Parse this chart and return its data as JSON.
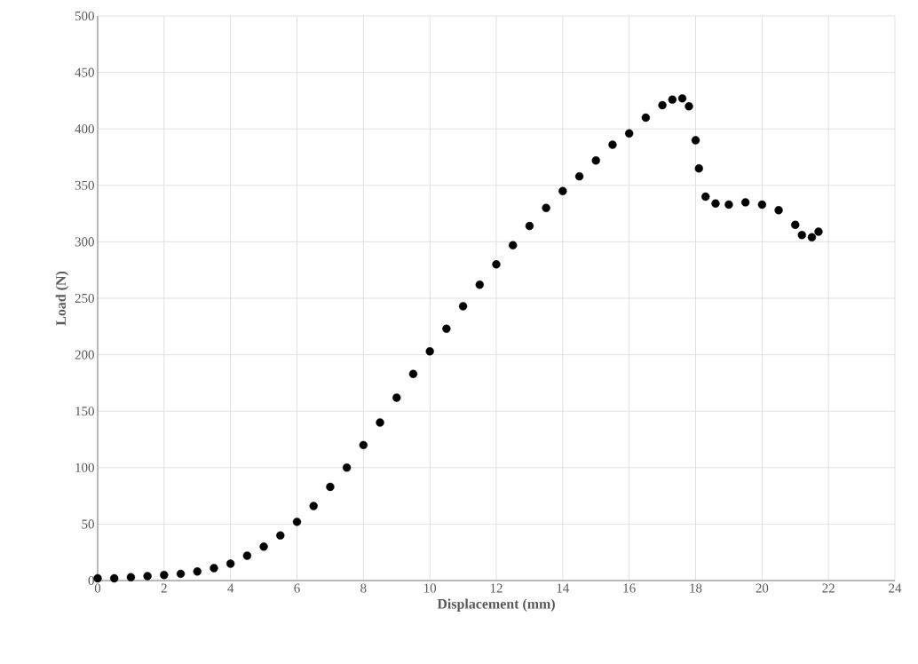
{
  "chart_data": {
    "type": "scatter",
    "xlabel": "Displacement (mm)",
    "ylabel": "Load (N)",
    "xlim": [
      0,
      24
    ],
    "ylim": [
      0,
      500
    ],
    "xticks": [
      0,
      2,
      4,
      6,
      8,
      10,
      12,
      14,
      16,
      18,
      20,
      22,
      24
    ],
    "yticks": [
      0,
      50,
      100,
      150,
      200,
      250,
      300,
      350,
      400,
      450,
      500
    ],
    "grid": true,
    "marker": "circle",
    "series": [
      {
        "color": "#000000",
        "x": [
          0,
          0.5,
          1,
          1.5,
          2,
          2.5,
          3,
          3.5,
          4,
          4.5,
          5,
          5.5,
          6,
          6.5,
          7,
          7.5,
          8,
          8.5,
          9,
          9.5,
          10,
          10.5,
          11,
          11.5,
          12,
          12.5,
          13,
          13.5,
          14,
          14.5,
          15,
          15.5,
          16,
          16.5,
          17,
          17.3,
          17.6,
          17.8,
          18,
          18.1,
          18.3,
          18.6,
          19,
          19.5,
          20,
          20.5,
          21,
          21.2,
          21.5,
          21.7
        ],
        "values": [
          2,
          2,
          3,
          4,
          5,
          6,
          8,
          11,
          15,
          22,
          30,
          40,
          52,
          66,
          83,
          100,
          120,
          140,
          162,
          183,
          203,
          223,
          243,
          262,
          280,
          297,
          314,
          330,
          345,
          358,
          372,
          386,
          396,
          410,
          421,
          426,
          427,
          420,
          390,
          365,
          340,
          334,
          333,
          335,
          333,
          328,
          315,
          306,
          304,
          309
        ]
      }
    ]
  }
}
